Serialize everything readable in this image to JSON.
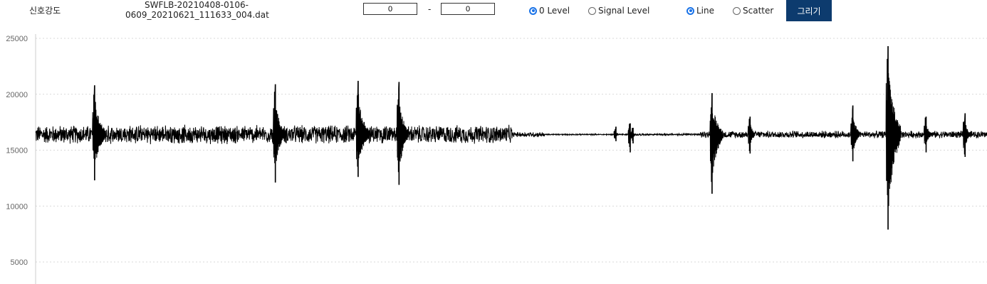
{
  "toolbar": {
    "signal_label": "신호강도",
    "filename_line1": "SWFLB-20210408-0106-",
    "filename_line2": "0609_20210621_111633_004.dat",
    "range_start": "0",
    "range_separator": "-",
    "range_end": "0",
    "level_options": [
      {
        "label": "0 Level",
        "checked": true
      },
      {
        "label": "Signal Level",
        "checked": false
      }
    ],
    "mode_options": [
      {
        "label": "Line",
        "checked": true
      },
      {
        "label": "Scatter",
        "checked": false
      }
    ],
    "draw_button": "그리기"
  },
  "colors": {
    "accent": "#0d3b6e",
    "radio": "#1a73e8",
    "signal": "#000000",
    "grid": "#d9d9d9",
    "axis_text": "#666666"
  },
  "chart_data": {
    "type": "line",
    "title": "",
    "xlabel": "",
    "ylabel": "",
    "yticks": [
      5000,
      10000,
      15000,
      20000,
      25000
    ],
    "ytick_labels": [
      "5000",
      "10000",
      "15000",
      "20000",
      "25000"
    ],
    "ylim": [
      3000,
      25500
    ],
    "xlim": [
      0,
      1000
    ],
    "baseline": 16400,
    "grid": true,
    "legend": "none",
    "segments": [
      {
        "x_start": 0,
        "x_end": 501,
        "noise": 900
      },
      {
        "x_start": 501,
        "x_end": 535,
        "noise": 250
      },
      {
        "x_start": 535,
        "x_end": 622,
        "noise": 60
      },
      {
        "x_start": 622,
        "x_end": 699,
        "noise": 100
      },
      {
        "x_start": 699,
        "x_end": 1000,
        "noise": 350
      }
    ],
    "bursts": [
      {
        "x": 61,
        "width": 12,
        "min": 12300,
        "max": 20800
      },
      {
        "x": 251,
        "width": 10,
        "min": 12100,
        "max": 20900
      },
      {
        "x": 338,
        "width": 12,
        "min": 12600,
        "max": 21200
      },
      {
        "x": 381,
        "width": 10,
        "min": 11900,
        "max": 21100
      },
      {
        "x": 609,
        "width": 3,
        "min": 15800,
        "max": 17100
      },
      {
        "x": 627,
        "width": 3,
        "min": 15600,
        "max": 17000
      },
      {
        "x": 624,
        "width": 3,
        "min": 14800,
        "max": 17400
      },
      {
        "x": 710,
        "width": 12,
        "min": 11100,
        "max": 20100
      },
      {
        "x": 750,
        "width": 6,
        "min": 14700,
        "max": 18000
      },
      {
        "x": 858,
        "width": 8,
        "min": 14000,
        "max": 19000
      },
      {
        "x": 895,
        "width": 14,
        "min": 7900,
        "max": 24300
      },
      {
        "x": 935,
        "width": 6,
        "min": 14800,
        "max": 18000
      },
      {
        "x": 976,
        "width": 6,
        "min": 14400,
        "max": 18300
      }
    ]
  }
}
